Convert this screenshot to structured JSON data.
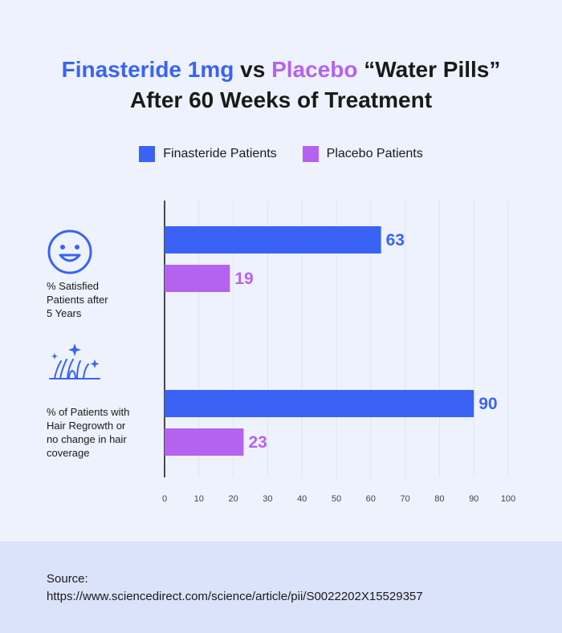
{
  "title": {
    "part1": "Finasteride 1mg",
    "part2": " vs ",
    "part3": "Placebo",
    "part4": " “Water Pills”",
    "line2": "After 60 Weeks of Treatment"
  },
  "colors": {
    "finasteride": "#3a63f5",
    "placebo": "#b463f0"
  },
  "categories": [
    {
      "label_lines": [
        "% Satisfied",
        "Patients after",
        "5 Years"
      ],
      "icon": "smiley-icon"
    },
    {
      "label_lines": [
        "% of Patients with",
        "Hair Regrowth or",
        "no change in hair",
        "coverage"
      ],
      "icon": "hair-follicle-icon"
    }
  ],
  "chart_data": {
    "type": "bar",
    "orientation": "horizontal",
    "categories": [
      "% Satisfied Patients after 5 Years",
      "% of Patients with Hair Regrowth or no change in hair coverage"
    ],
    "series": [
      {
        "name": "Finasteride Patients",
        "values": [
          63,
          90
        ]
      },
      {
        "name": "Placebo Patients",
        "values": [
          19,
          23
        ]
      }
    ],
    "xlim": [
      0,
      100
    ],
    "xticks": [
      "0",
      "10",
      "20",
      "30",
      "40",
      "50",
      "60",
      "70",
      "80",
      "90",
      "100"
    ],
    "value_labels": [
      "63",
      "19",
      "90",
      "23"
    ],
    "grid": true,
    "legend": "top-center"
  },
  "footer": {
    "source_label": "Source:",
    "source_url": "https://www.sciencedirect.com/science/article/pii/S0022202X15529357"
  }
}
